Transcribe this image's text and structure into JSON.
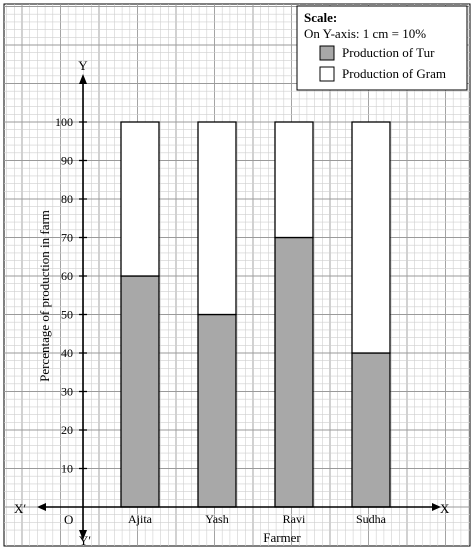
{
  "chart_data": {
    "type": "bar",
    "stacked": true,
    "categories": [
      "Ajita",
      "Yash",
      "Ravi",
      "Sudha"
    ],
    "series": [
      {
        "name": "Production of Tur",
        "values": [
          60,
          50,
          70,
          40
        ],
        "color": "#a8a8a8"
      },
      {
        "name": "Production of Gram",
        "values": [
          40,
          50,
          30,
          60
        ],
        "color": "#ffffff"
      }
    ],
    "ylim": [
      0,
      100
    ],
    "yticks": [
      10,
      20,
      30,
      40,
      50,
      60,
      70,
      80,
      90,
      100
    ],
    "xlabel": "Farmer",
    "ylabel": "Percentage of production in farm",
    "axis_labels": {
      "x": "X",
      "x_neg": "X′",
      "y": "Y",
      "y_neg": "Y′",
      "origin": "O"
    },
    "grid": true,
    "legend": {
      "placement": "top-right",
      "title": "Scale:",
      "scale_text": "On Y-axis: 1 cm = 10%"
    }
  }
}
